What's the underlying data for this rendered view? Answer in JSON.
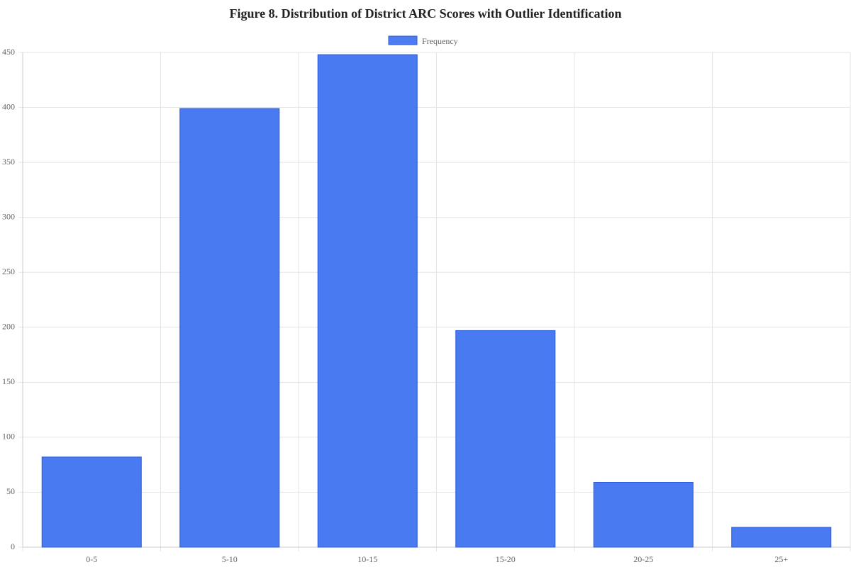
{
  "chart_data": {
    "type": "bar",
    "title": "Figure 8. Distribution of District ARC Scores with Outlier Identification",
    "categories": [
      "0-5",
      "5-10",
      "10-15",
      "15-20",
      "20-25",
      "25+"
    ],
    "series": [
      {
        "name": "Frequency",
        "color": "#3b6ff0",
        "values": [
          82,
          399,
          448,
          197,
          59,
          18
        ]
      }
    ],
    "ylim": [
      0,
      450
    ],
    "yticks": [
      0,
      50,
      100,
      150,
      200,
      250,
      300,
      350,
      400,
      450
    ],
    "grid": true,
    "legend": "top"
  }
}
